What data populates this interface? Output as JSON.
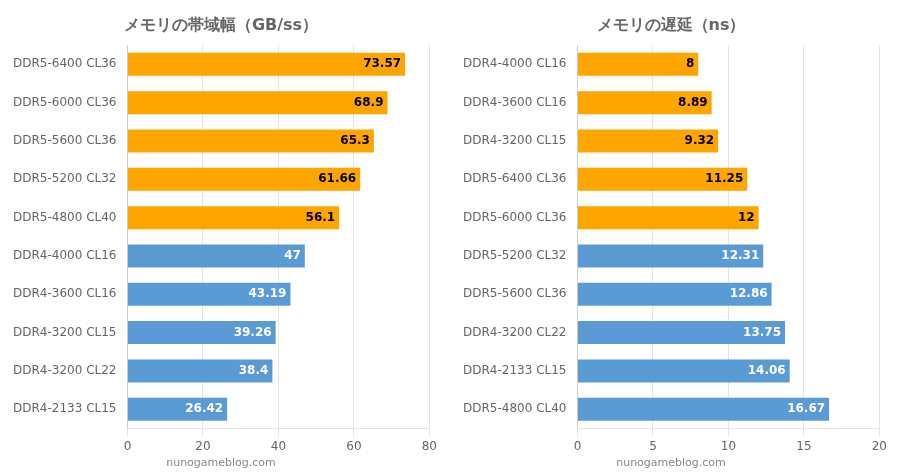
{
  "chart_data": [
    {
      "type": "bar",
      "orientation": "horizontal",
      "title": "メモリの帯域幅（GB/ss）",
      "categories": [
        "DDR5-6400 CL36",
        "DDR5-6000 CL36",
        "DDR5-5600 CL36",
        "DDR5-5200 CL32",
        "DDR5-4800 CL40",
        "DDR4-4000 CL16",
        "DDR4-3600 CL16",
        "DDR4-3200 CL15",
        "DDR4-3200 CL22",
        "DDR4-2133 CL15"
      ],
      "values": [
        73.57,
        68.9,
        65.3,
        61.66,
        56.1,
        47,
        43.19,
        39.26,
        38.4,
        26.42
      ],
      "colors": [
        "#FFA500",
        "#FFA500",
        "#FFA500",
        "#FFA500",
        "#FFA500",
        "#5B9BD5",
        "#5B9BD5",
        "#5B9BD5",
        "#5B9BD5",
        "#5B9BD5"
      ],
      "xlim": [
        0,
        80
      ],
      "xticks": [
        0,
        20,
        40,
        60,
        80
      ],
      "grid": true,
      "data_labels": true,
      "annotations": [
        "nunogameblog.com"
      ]
    },
    {
      "type": "bar",
      "orientation": "horizontal",
      "title": "メモリの遅延（ns）",
      "categories": [
        "DDR4-4000 CL16",
        "DDR4-3600 CL16",
        "DDR4-3200 CL15",
        "DDR5-6400 CL36",
        "DDR5-6000 CL36",
        "DDR5-5200 CL32",
        "DDR5-5600 CL36",
        "DDR4-3200 CL22",
        "DDR4-2133 CL15",
        "DDR5-4800 CL40"
      ],
      "values": [
        8,
        8.89,
        9.32,
        11.25,
        12,
        12.31,
        12.86,
        13.75,
        14.06,
        16.67
      ],
      "colors": [
        "#FFA500",
        "#FFA500",
        "#FFA500",
        "#FFA500",
        "#FFA500",
        "#5B9BD5",
        "#5B9BD5",
        "#5B9BD5",
        "#5B9BD5",
        "#5B9BD5"
      ],
      "xlim": [
        0,
        20
      ],
      "xticks": [
        0,
        5,
        10,
        15,
        20
      ],
      "grid": true,
      "data_labels": true,
      "annotations": [
        "nunogameblog.com"
      ]
    }
  ]
}
